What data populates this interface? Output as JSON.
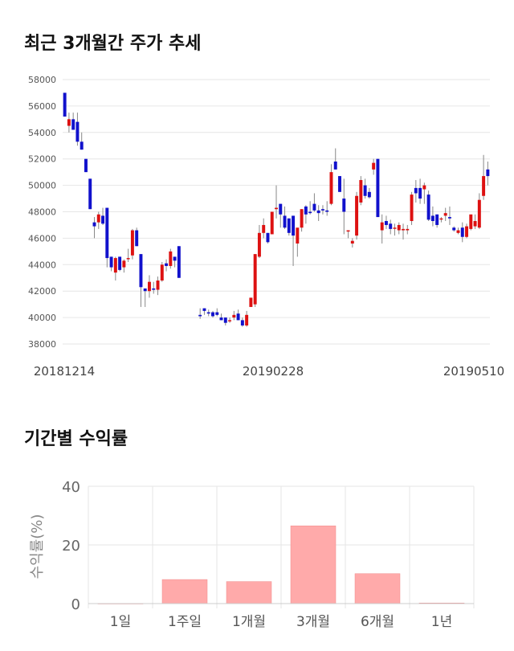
{
  "section1": {
    "title": "최근 3개월간 주가 추세"
  },
  "section2": {
    "title": "기간별 수익률"
  },
  "colors": {
    "up": "#dd1111",
    "down": "#1111cc",
    "bar": "#ffaaaa",
    "grid": "#e6e6e6"
  },
  "chart_data": [
    {
      "type": "candlestick",
      "title": "최근 3개월간 주가 추세",
      "ylim": [
        38000,
        58000
      ],
      "yticks": [
        "58000",
        "56000",
        "54000",
        "52000",
        "50000",
        "48000",
        "46000",
        "44000",
        "42000",
        "40000",
        "38000"
      ],
      "xlabels": [
        "20181214",
        "20190228",
        "20190510"
      ],
      "grid": true,
      "candles": [
        [
          57000,
          57000,
          55200,
          55200
        ],
        [
          54500,
          55500,
          54000,
          55000
        ],
        [
          55000,
          55500,
          54200,
          54200
        ],
        [
          54800,
          55500,
          53000,
          53300
        ],
        [
          53300,
          54000,
          52700,
          52700
        ],
        [
          52000,
          52000,
          51000,
          51000
        ],
        [
          50500,
          50500,
          48200,
          48200
        ],
        [
          47200,
          47600,
          46000,
          46900
        ],
        [
          47200,
          48000,
          46700,
          47800
        ],
        [
          47700,
          48300,
          47000,
          47100
        ],
        [
          48300,
          48300,
          43800,
          44500
        ],
        [
          44600,
          44600,
          43500,
          43800
        ],
        [
          43400,
          44600,
          42800,
          44500
        ],
        [
          44600,
          44600,
          43500,
          43600
        ],
        [
          43800,
          44400,
          43400,
          44300
        ],
        [
          44500,
          45200,
          44200,
          44500
        ],
        [
          44700,
          46700,
          44400,
          46600
        ],
        [
          46600,
          46800,
          45400,
          45400
        ],
        [
          44800,
          44800,
          40800,
          42300
        ],
        [
          42200,
          42200,
          40800,
          42000
        ],
        [
          42000,
          43200,
          41500,
          42700
        ],
        [
          42200,
          42700,
          41800,
          42100
        ],
        [
          42100,
          43100,
          41700,
          42800
        ],
        [
          42800,
          44200,
          42700,
          44000
        ],
        [
          44100,
          44400,
          43500,
          43900
        ],
        [
          43900,
          45200,
          43700,
          45000
        ],
        [
          44600,
          44600,
          43800,
          44300
        ],
        [
          45400,
          45400,
          43000,
          43000
        ],
        null,
        null,
        null,
        null,
        [
          40200,
          40700,
          39900,
          40100
        ],
        [
          40700,
          40700,
          40200,
          40500
        ],
        [
          40400,
          40600,
          40100,
          40300
        ],
        [
          40400,
          40500,
          40000,
          40100
        ],
        [
          40400,
          40700,
          40100,
          40200
        ],
        [
          40000,
          40300,
          39800,
          39800
        ],
        [
          40000,
          40000,
          39400,
          39600
        ],
        [
          39800,
          40000,
          39600,
          39800
        ],
        [
          40000,
          40500,
          39800,
          40200
        ],
        [
          40300,
          40600,
          39800,
          39800
        ],
        [
          39800,
          40000,
          39300,
          39400
        ],
        [
          39400,
          40500,
          39300,
          40200
        ],
        [
          40800,
          41500,
          40800,
          41500
        ],
        [
          41000,
          44800,
          40800,
          44800
        ],
        [
          44600,
          47000,
          44500,
          46400
        ],
        [
          46400,
          47500,
          46000,
          47000
        ],
        [
          46400,
          46400,
          45600,
          45700
        ],
        [
          46300,
          48000,
          46300,
          48000
        ],
        [
          48200,
          50000,
          47500,
          48300
        ],
        [
          48600,
          48600,
          46800,
          47800
        ],
        [
          47700,
          48400,
          46700,
          46800
        ],
        [
          47500,
          47500,
          46200,
          46400
        ],
        [
          47700,
          47700,
          43900,
          46200
        ],
        [
          45600,
          45600,
          44600,
          46800
        ],
        [
          46800,
          48200,
          46500,
          48200
        ],
        [
          48400,
          48500,
          47100,
          47800
        ],
        [
          48000,
          48800,
          47800,
          47900
        ],
        [
          48600,
          49400,
          48000,
          48100
        ],
        [
          48100,
          48500,
          47300,
          47900
        ],
        [
          48200,
          48500,
          47800,
          48100
        ],
        [
          48100,
          48800,
          47700,
          48000
        ],
        [
          48600,
          51600,
          48500,
          51000
        ],
        [
          51800,
          52800,
          51200,
          51200
        ],
        [
          50700,
          50700,
          49500,
          49500
        ],
        [
          49000,
          50500,
          46300,
          48000
        ],
        [
          46500,
          46500,
          46000,
          46600
        ],
        [
          45600,
          46000,
          45300,
          45800
        ],
        [
          46200,
          49500,
          45900,
          49200
        ],
        [
          48700,
          50700,
          48500,
          50400
        ],
        [
          50000,
          50500,
          49000,
          49200
        ],
        [
          49500,
          49800,
          49000,
          49100
        ],
        [
          51200,
          52000,
          50800,
          51700
        ],
        [
          52000,
          52000,
          47600,
          47600
        ],
        [
          46600,
          47800,
          45600,
          47200
        ],
        [
          47300,
          47700,
          46700,
          47000
        ],
        [
          47100,
          47400,
          46300,
          46700
        ],
        [
          46800,
          47100,
          46200,
          46800
        ],
        [
          46600,
          47200,
          46300,
          47000
        ],
        [
          46600,
          47100,
          45900,
          46700
        ],
        [
          46600,
          47000,
          46300,
          46700
        ],
        [
          47300,
          49500,
          47000,
          49300
        ],
        [
          49800,
          50400,
          48700,
          49400
        ],
        [
          49800,
          50500,
          48600,
          49000
        ],
        [
          49700,
          50200,
          48600,
          50000
        ],
        [
          49300,
          49600,
          47300,
          47400
        ],
        [
          47700,
          48400,
          46900,
          47300
        ],
        [
          47800,
          47800,
          46800,
          47000
        ],
        [
          47500,
          47600,
          47200,
          47500
        ],
        [
          47700,
          48300,
          47300,
          47900
        ],
        [
          47600,
          48400,
          47000,
          47500
        ],
        [
          46800,
          46900,
          46500,
          46600
        ],
        [
          46400,
          46800,
          46300,
          46600
        ],
        [
          46800,
          47200,
          45700,
          46100
        ],
        [
          46100,
          47100,
          46000,
          46900
        ],
        [
          46700,
          47600,
          46600,
          47800
        ],
        [
          46900,
          47800,
          46700,
          47300
        ],
        [
          46800,
          49400,
          46700,
          48900
        ],
        [
          49200,
          52300,
          48900,
          50700
        ],
        [
          51200,
          51800,
          50000,
          50700
        ]
      ]
    },
    {
      "type": "bar",
      "title": "기간별 수익률",
      "ylabel": "수익률(%)",
      "categories": [
        "1일",
        "1주일",
        "1개월",
        "3개월",
        "6개월",
        "1년"
      ],
      "values": [
        0,
        8.2,
        7.5,
        26.5,
        10.2,
        0.2
      ],
      "ylim": [
        0,
        40
      ],
      "yticks": [
        0,
        20,
        40
      ],
      "grid": true
    }
  ]
}
